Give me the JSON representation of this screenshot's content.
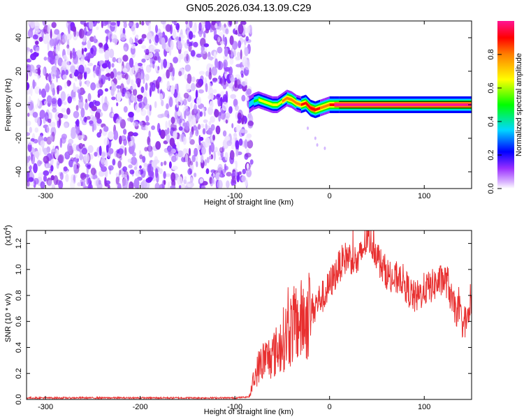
{
  "title": "GN05.2026.034.13.09.C29",
  "chart_data": [
    {
      "type": "heatmap",
      "xlabel": "Height of straight line (km)",
      "ylabel": "Frequency (Hz)",
      "xlim": [
        -320,
        150
      ],
      "ylim": [
        -50,
        50
      ],
      "xticks": [
        "-300",
        "-200",
        "-100",
        "0",
        "100"
      ],
      "xtick_values": [
        -300,
        -200,
        -100,
        0,
        100
      ],
      "yticks": [
        "-40",
        "-20",
        "0",
        "20",
        "40"
      ],
      "ytick_values": [
        -40,
        -20,
        0,
        20,
        40
      ],
      "colorbar": {
        "label": "Normalized spectral amplitude",
        "range": [
          0,
          1
        ],
        "ticks": [
          "0.0",
          "0.2",
          "0.4",
          "0.6",
          "0.8"
        ],
        "tick_values": [
          0.0,
          0.2,
          0.4,
          0.6,
          0.8
        ],
        "colormap": "rainbow (white → purple → blue → cyan → green → yellow → red → magenta)"
      },
      "noise_region": {
        "x_from": -320,
        "x_to": -83,
        "freq_from": -50,
        "freq_to": 50,
        "amplitude_approx": 0.1
      },
      "signal_ridge": {
        "x": [
          -85,
          -80,
          -75,
          -70,
          -65,
          -60,
          -55,
          -50,
          -45,
          -40,
          -35,
          -30,
          -25,
          -20,
          -15,
          -10,
          -5,
          0,
          5,
          10,
          150
        ],
        "frequency": [
          0,
          2,
          3,
          2,
          1,
          0,
          0,
          2,
          4,
          3,
          1,
          0,
          1,
          -2,
          -3,
          -2,
          -1,
          0,
          0,
          0,
          0
        ],
        "peak_amplitude": [
          0.3,
          0.45,
          0.55,
          0.6,
          0.55,
          0.65,
          0.6,
          0.7,
          0.8,
          0.75,
          0.7,
          0.85,
          0.9,
          0.9,
          0.85,
          0.8,
          0.75,
          0.85,
          0.95,
          1.0,
          1.0
        ]
      }
    },
    {
      "type": "line",
      "xlabel": "Height of straight line (km)",
      "ylabel": "SNR (10 * v/v)",
      "yscale_label": "(x10",
      "yscale_exponent": "4",
      "xlim": [
        -320,
        150
      ],
      "ylim": [
        0,
        1.3
      ],
      "xticks": [
        "-300",
        "-200",
        "-100",
        "0",
        "100"
      ],
      "xtick_values": [
        -300,
        -200,
        -100,
        0,
        100
      ],
      "yticks": [
        "0.0",
        "0.2",
        "0.4",
        "0.6",
        "0.8",
        "1.0",
        "1.2"
      ],
      "ytick_values": [
        0.0,
        0.2,
        0.4,
        0.6,
        0.8,
        1.0,
        1.2
      ],
      "color": "#e83030",
      "series": [
        {
          "x": [
            -320,
            -100,
            -85,
            -80,
            -75,
            -70,
            -65,
            -60,
            -55,
            -50,
            -45,
            -40,
            -35,
            -30,
            -25,
            -20,
            -15,
            -10,
            -5,
            0,
            5,
            10,
            15,
            20,
            25,
            30,
            35,
            40,
            45,
            50,
            55,
            60,
            65,
            70,
            75,
            80,
            85,
            90,
            95,
            100,
            105,
            110,
            115,
            120,
            125,
            130,
            135,
            140,
            145,
            150
          ],
          "values": [
            0.012,
            0.012,
            0.02,
            0.15,
            0.25,
            0.3,
            0.32,
            0.34,
            0.38,
            0.45,
            0.5,
            0.55,
            0.58,
            0.6,
            0.62,
            0.68,
            0.72,
            0.78,
            0.8,
            0.88,
            0.95,
            1.02,
            1.08,
            1.1,
            1.08,
            1.05,
            1.15,
            1.25,
            1.2,
            1.12,
            1.02,
            0.98,
            0.92,
            0.92,
            0.95,
            0.88,
            0.82,
            0.78,
            0.8,
            0.85,
            0.86,
            0.88,
            0.9,
            0.92,
            0.9,
            0.72,
            0.68,
            0.6,
            0.6,
            0.72
          ]
        }
      ]
    }
  ]
}
